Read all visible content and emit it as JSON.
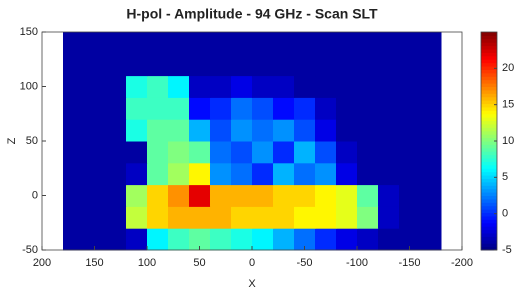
{
  "chart_data": {
    "type": "heatmap",
    "title": "H-pol - Amplitude  - 94 GHz - Scan SLT",
    "xlabel": "X",
    "ylabel": "Z",
    "xlim": [
      200,
      -200
    ],
    "xticks": [
      200,
      150,
      100,
      50,
      0,
      -50,
      -100,
      -150,
      -200
    ],
    "ylim": [
      -50,
      150
    ],
    "yticks": [
      -50,
      0,
      50,
      100,
      150
    ],
    "x_edges": [
      180,
      160,
      140,
      120,
      100,
      80,
      60,
      40,
      20,
      0,
      -20,
      -40,
      -60,
      -80,
      -100,
      -120,
      -140,
      -160,
      -180
    ],
    "y_edges": [
      -50,
      -30,
      -10,
      10,
      30,
      50,
      70,
      90,
      110,
      130,
      150
    ],
    "values": [
      [
        -4,
        -4,
        -4,
        -3,
        6,
        8,
        9,
        8,
        7,
        6,
        4,
        2,
        0,
        -2,
        -3,
        -4,
        -4,
        -4
      ],
      [
        -4,
        -4,
        -4,
        12,
        15,
        16,
        16,
        16,
        15,
        15,
        15,
        14,
        14,
        13,
        10,
        -3,
        -4,
        -4
      ],
      [
        -4,
        -4,
        -4,
        11,
        15,
        17,
        22,
        16,
        16,
        16,
        15,
        15,
        14,
        13,
        9,
        -3,
        -4,
        -4
      ],
      [
        -4,
        -4,
        -4,
        -3,
        9,
        11,
        14,
        3,
        2,
        0,
        4,
        2,
        3,
        -2,
        -4,
        -4,
        -4,
        -4
      ],
      [
        -4,
        -4,
        -4,
        -4,
        9,
        10,
        9,
        2,
        1,
        3,
        0,
        4,
        1,
        -3,
        -4,
        -4,
        -4,
        -4
      ],
      [
        -4,
        -4,
        -4,
        7,
        9,
        9,
        4,
        1,
        3,
        2,
        3,
        1,
        -2,
        -4,
        -4,
        -4,
        -4,
        -4
      ],
      [
        -4,
        -4,
        -4,
        8,
        8,
        8,
        -1,
        0,
        2,
        1,
        -1,
        0,
        -3,
        -4,
        -4,
        -4,
        -4,
        -4
      ],
      [
        -4,
        -4,
        -4,
        7,
        8,
        6,
        -3,
        -3,
        -2,
        -3,
        -3,
        -4,
        -4,
        -4,
        -4,
        -4,
        -4,
        -4
      ],
      [
        -4,
        -4,
        -4,
        -4,
        -4,
        -4,
        -4,
        -4,
        -4,
        -4,
        -4,
        -4,
        -4,
        -4,
        -4,
        -4,
        -4,
        -4
      ],
      [
        -4,
        -4,
        -4,
        -4,
        -4,
        -4,
        -4,
        -4,
        -4,
        -4,
        -4,
        -4,
        -4,
        -4,
        -4,
        -4,
        -4,
        -4
      ]
    ],
    "colormap": "jet",
    "clim": [
      -5,
      25
    ],
    "cticks": [
      -5,
      0,
      5,
      10,
      15,
      20
    ]
  }
}
